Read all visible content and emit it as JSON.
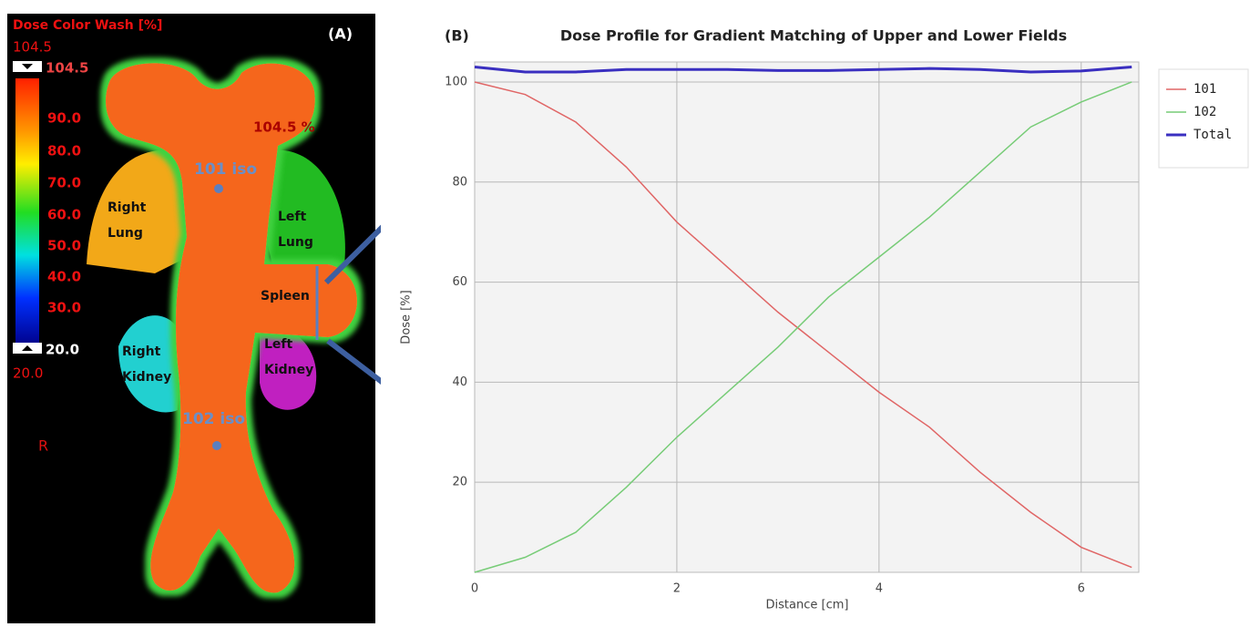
{
  "panel_a": {
    "label": "(A)",
    "colorbar_title": "Dose Color Wash [%]",
    "max_label": "104.5",
    "max_marker": "104.5",
    "scale_labels": [
      "90.0",
      "80.0",
      "70.0",
      "60.0",
      "50.0",
      "40.0",
      "30.0"
    ],
    "min_marker": "20.0",
    "min_label": "20.0",
    "orientation": "R",
    "hotspot": "104.5 %",
    "iso_upper": "101 iso",
    "iso_lower": "102 iso",
    "organs": [
      {
        "lines": [
          "Right",
          "Lung"
        ]
      },
      {
        "lines": [
          "Left",
          "Lung"
        ]
      },
      {
        "lines": [
          "Spleen"
        ]
      },
      {
        "lines": [
          "Left",
          "Kidney"
        ]
      },
      {
        "lines": [
          "Right",
          "Kidney"
        ]
      }
    ]
  },
  "chart_data": {
    "type": "line",
    "panel_label": "(B)",
    "title": "Dose Profile for Gradient Matching of Upper and Lower Fields",
    "x_label": "Distance [cm]",
    "y_label": "Dose [%]",
    "x": [
      0,
      0.5,
      1,
      1.5,
      2,
      2.5,
      3,
      3.5,
      4,
      4.5,
      5,
      5.5,
      6,
      6.5
    ],
    "series": [
      {
        "name": "101",
        "color": "#e06666",
        "values": [
          100,
          97.5,
          92,
          83,
          72,
          63,
          54,
          46,
          38,
          31,
          22,
          14,
          7,
          3
        ]
      },
      {
        "name": "102",
        "color": "#77cc77",
        "values": [
          2,
          5,
          10,
          19,
          29,
          38,
          47,
          57,
          65,
          73,
          82,
          91,
          96,
          100
        ]
      },
      {
        "name": "Total",
        "color": "#3a2fc0",
        "values": [
          103,
          102,
          102,
          102.5,
          102.5,
          102.5,
          102.3,
          102.3,
          102.5,
          102.7,
          102.5,
          102,
          102.2,
          103
        ]
      }
    ],
    "xlim": [
      0,
      6.57
    ],
    "xticks": [
      0,
      2,
      4,
      6
    ],
    "ylim": [
      2,
      104
    ],
    "yticks": [
      20,
      40,
      60,
      80,
      100
    ],
    "grid": true,
    "legend": "right"
  }
}
